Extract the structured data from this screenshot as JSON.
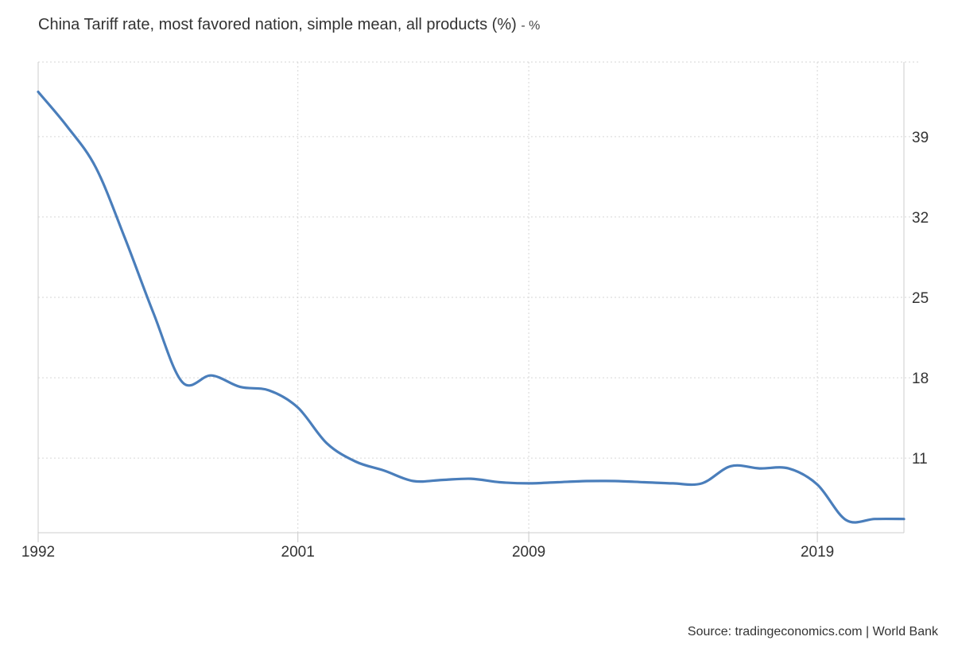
{
  "chart_data": {
    "type": "line",
    "title": "China Tariff rate, most favored nation, simple mean, all products (%)",
    "unit_suffix": "- %",
    "source": "Source: tradingeconomics.com | World Bank",
    "x_tick_labels": [
      "1992",
      "2001",
      "2009",
      "2019"
    ],
    "y_tick_labels": [
      "11",
      "18",
      "25",
      "32",
      "39"
    ],
    "ylim": [
      4.5,
      45.5
    ],
    "xlim": [
      1992,
      2022
    ],
    "grid": true,
    "y_axis_side": "right",
    "legend": "none",
    "line_color": "#4a7ebb",
    "series": [
      {
        "values": [
          {
            "x": 1992,
            "y": 42.9
          },
          {
            "x": 1993,
            "y": 39.9
          },
          {
            "x": 1994,
            "y": 36.3
          },
          {
            "x": 1995,
            "y": 30.2
          },
          {
            "x": 1996,
            "y": 23.6
          },
          {
            "x": 1997,
            "y": 17.6
          },
          {
            "x": 1998,
            "y": 18.2
          },
          {
            "x": 1999,
            "y": 17.2
          },
          {
            "x": 2000,
            "y": 16.9
          },
          {
            "x": 2001,
            "y": 15.4
          },
          {
            "x": 2002,
            "y": 12.3
          },
          {
            "x": 2003,
            "y": 10.7
          },
          {
            "x": 2004,
            "y": 9.9
          },
          {
            "x": 2005,
            "y": 9.0
          },
          {
            "x": 2006,
            "y": 9.1
          },
          {
            "x": 2007,
            "y": 9.2
          },
          {
            "x": 2008,
            "y": 8.9
          },
          {
            "x": 2009,
            "y": 8.8
          },
          {
            "x": 2010,
            "y": 8.9
          },
          {
            "x": 2011,
            "y": 9.0
          },
          {
            "x": 2012,
            "y": 9.0
          },
          {
            "x": 2013,
            "y": 8.9
          },
          {
            "x": 2014,
            "y": 8.8
          },
          {
            "x": 2015,
            "y": 8.8
          },
          {
            "x": 2016,
            "y": 10.3
          },
          {
            "x": 2017,
            "y": 10.1
          },
          {
            "x": 2018,
            "y": 10.1
          },
          {
            "x": 2019,
            "y": 8.7
          },
          {
            "x": 2020,
            "y": 5.6
          },
          {
            "x": 2021,
            "y": 5.7
          },
          {
            "x": 2022,
            "y": 5.7
          }
        ]
      }
    ]
  }
}
